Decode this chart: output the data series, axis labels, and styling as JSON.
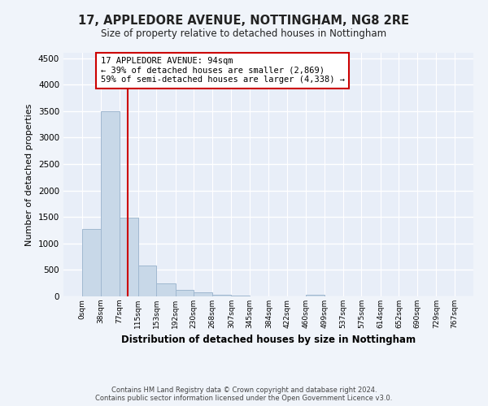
{
  "title": "17, APPLEDORE AVENUE, NOTTINGHAM, NG8 2RE",
  "subtitle": "Size of property relative to detached houses in Nottingham",
  "xlabel": "Distribution of detached houses by size in Nottingham",
  "ylabel": "Number of detached properties",
  "bin_edges": [
    0,
    38,
    77,
    115,
    153,
    192,
    230,
    268,
    307,
    345,
    384,
    422,
    460,
    499,
    537,
    575,
    614,
    652,
    690,
    729,
    767
  ],
  "bar_heights": [
    1280,
    3500,
    1480,
    580,
    245,
    130,
    75,
    30,
    10,
    5,
    3,
    2,
    30,
    0,
    0,
    0,
    0,
    0,
    0,
    0
  ],
  "bar_color": "#c8d8e8",
  "bar_edgecolor": "#a0b8d0",
  "property_size": 94,
  "property_line_color": "#cc0000",
  "annotation_text": "17 APPLEDORE AVENUE: 94sqm\n← 39% of detached houses are smaller (2,869)\n59% of semi-detached houses are larger (4,338) →",
  "annotation_box_color": "#ffffff",
  "annotation_box_edgecolor": "#cc0000",
  "ylim": [
    0,
    4600
  ],
  "yticks": [
    0,
    500,
    1000,
    1500,
    2000,
    2500,
    3000,
    3500,
    4000,
    4500
  ],
  "fig_background_color": "#f0f4fa",
  "ax_background_color": "#e8eef8",
  "grid_color": "#ffffff",
  "footer_line1": "Contains HM Land Registry data © Crown copyright and database right 2024.",
  "footer_line2": "Contains public sector information licensed under the Open Government Licence v3.0."
}
